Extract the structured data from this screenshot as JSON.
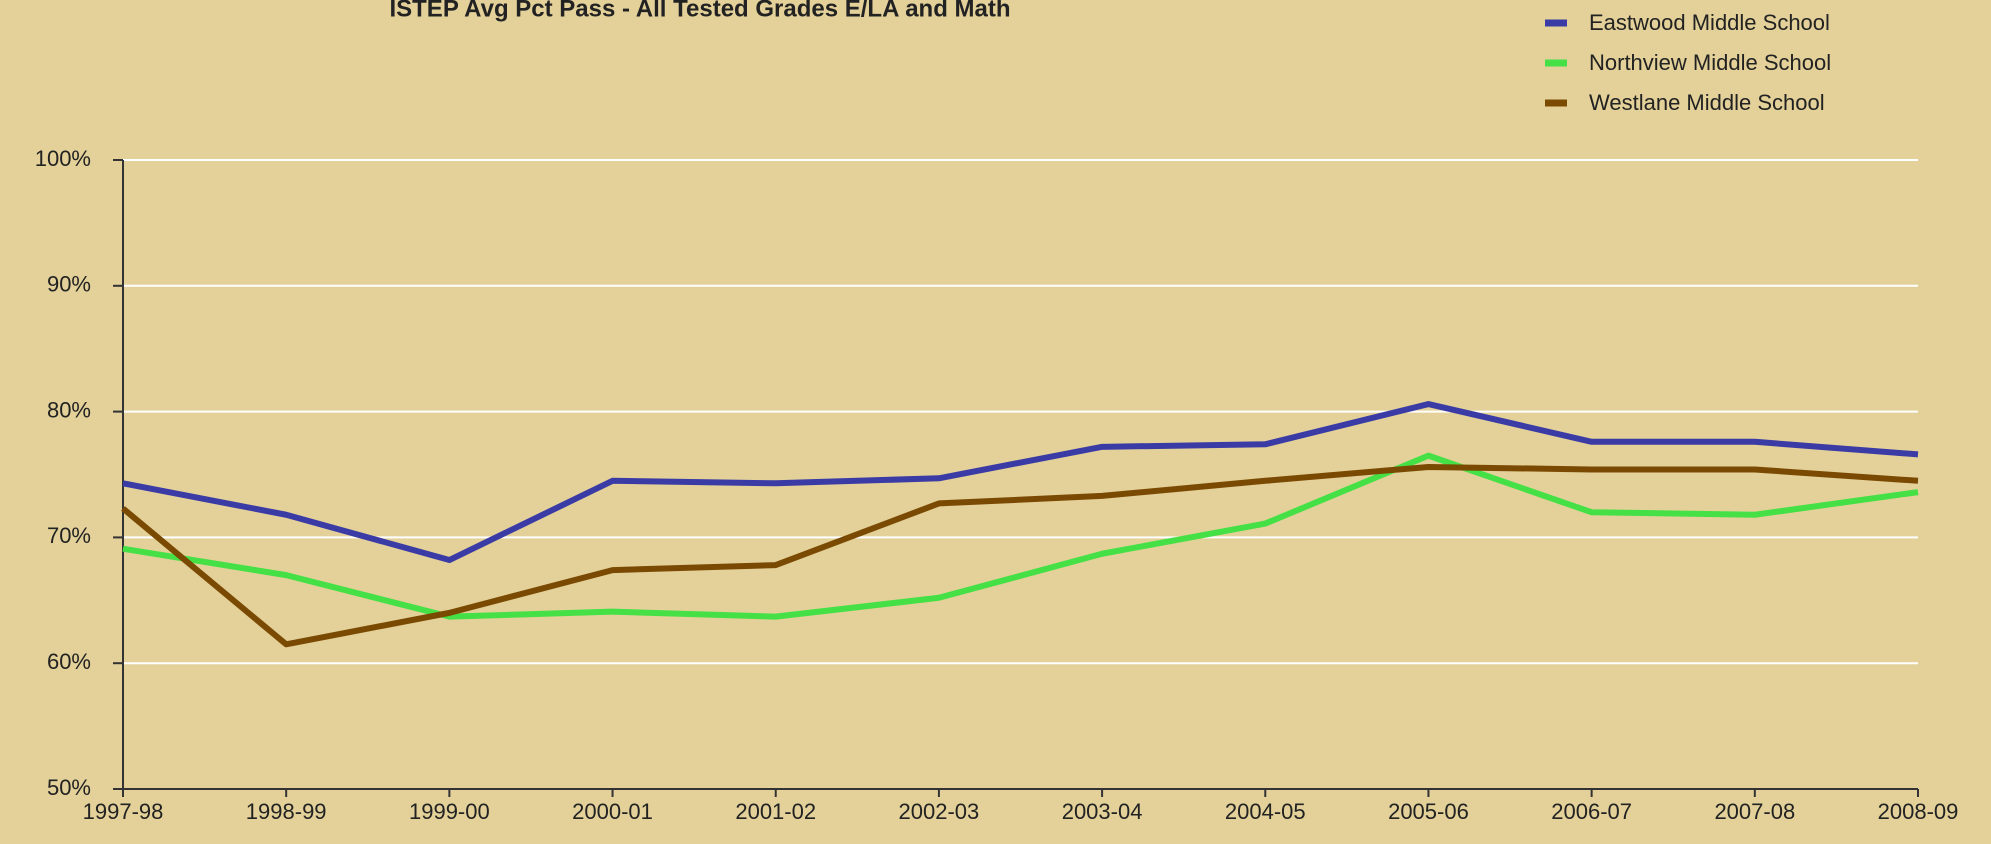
{
  "chart_data": {
    "type": "line",
    "title": "ISTEP Avg Pct Pass - All Tested Grades E/LA and Math",
    "categories": [
      "1997-98",
      "1998-99",
      "1999-00",
      "2000-01",
      "2001-02",
      "2002-03",
      "2003-04",
      "2004-05",
      "2005-06",
      "2006-07",
      "2007-08",
      "2008-09"
    ],
    "series": [
      {
        "name": "Eastwood Middle School",
        "color": "#3b3ba6",
        "values": [
          74.3,
          71.8,
          68.2,
          74.5,
          74.3,
          74.7,
          77.2,
          77.4,
          80.6,
          77.6,
          77.6,
          76.6
        ]
      },
      {
        "name": "Northview Middle School",
        "color": "#45e045",
        "values": [
          69.1,
          67.0,
          63.7,
          64.1,
          63.7,
          65.2,
          68.7,
          71.1,
          76.5,
          72.0,
          71.8,
          73.6
        ]
      },
      {
        "name": "Westlane Middle School",
        "color": "#7b4a02",
        "values": [
          72.3,
          61.5,
          64.0,
          67.4,
          67.8,
          72.7,
          73.3,
          74.5,
          75.6,
          75.4,
          75.4,
          74.5
        ]
      }
    ],
    "ylim": [
      50,
      100
    ],
    "yticks": [
      {
        "value": 50,
        "label": "50%"
      },
      {
        "value": 60,
        "label": "60%"
      },
      {
        "value": 70,
        "label": "70%"
      },
      {
        "value": 80,
        "label": "80%"
      },
      {
        "value": 90,
        "label": "90%"
      },
      {
        "value": 100,
        "label": "100%"
      }
    ],
    "grid": true,
    "legend": "top-right"
  }
}
